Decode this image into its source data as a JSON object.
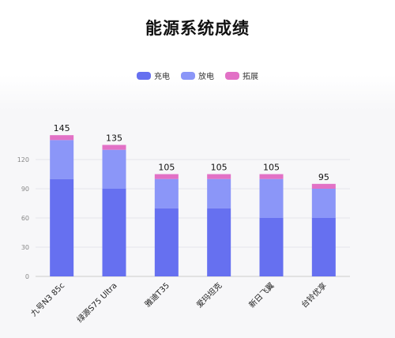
{
  "chart_data": {
    "type": "bar",
    "stacked": true,
    "title": "能源系统成绩",
    "categories": [
      "九号N3 85c",
      "绿源S75 Ultra",
      "雅迪T35",
      "爱玛坦克",
      "新日飞翼",
      "台铃优享"
    ],
    "series": [
      {
        "name": "充电",
        "color": "#6670f0",
        "values": [
          100,
          90,
          70,
          70,
          60,
          60
        ]
      },
      {
        "name": "放电",
        "color": "#8b96f8",
        "values": [
          40,
          40,
          30,
          30,
          40,
          30
        ]
      },
      {
        "name": "拓展",
        "color": "#e271c6",
        "values": [
          5,
          5,
          5,
          5,
          5,
          5
        ]
      }
    ],
    "totals": [
      "145",
      "135",
      "105",
      "105",
      "105",
      "95"
    ],
    "yticks": [
      "0",
      "30",
      "60",
      "90",
      "120"
    ],
    "ylim": [
      0,
      150
    ],
    "legend_position": "top-center",
    "grid": true
  }
}
